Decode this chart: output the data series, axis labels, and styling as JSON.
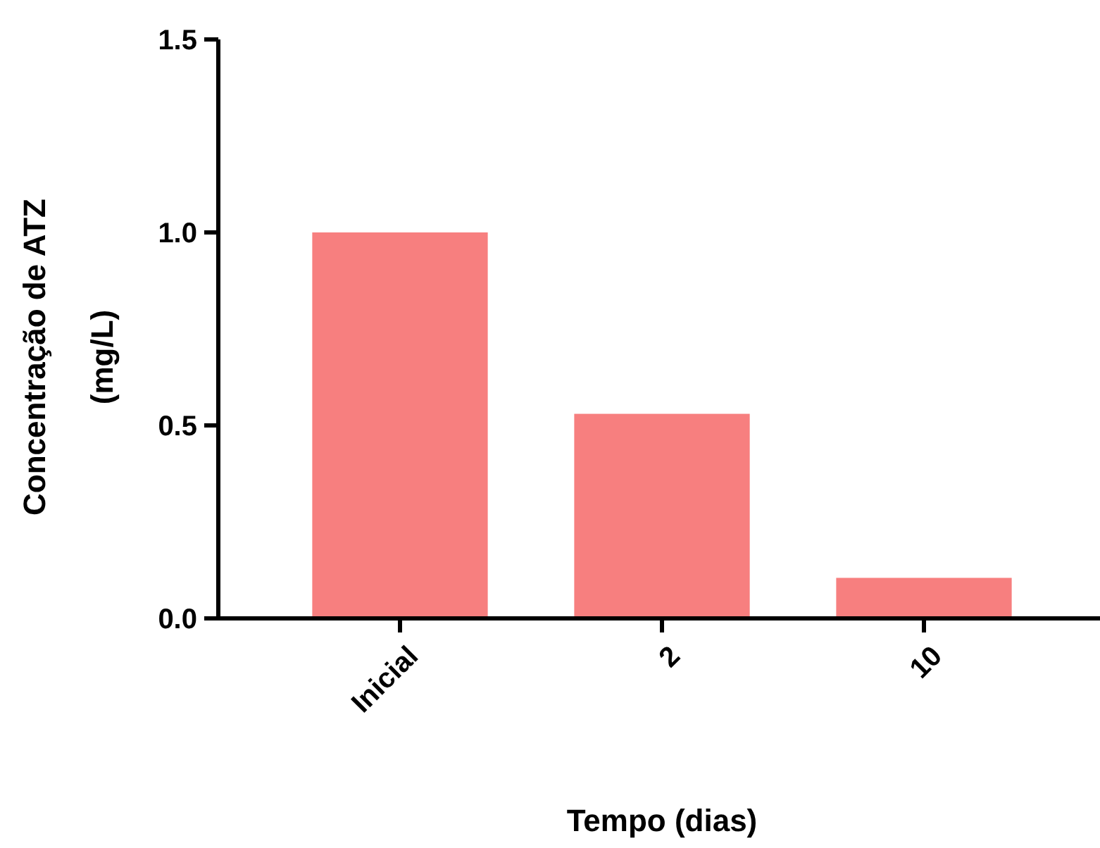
{
  "chart_data": {
    "type": "bar",
    "xlabel": "Tempo (dias)",
    "ylabel": "Concentração de ATZ\n(mg/L)",
    "categories": [
      "Inicial",
      "2",
      "10"
    ],
    "values": [
      1.0,
      0.53,
      0.105
    ],
    "color": "#f77f7f",
    "ylim": [
      0,
      1.5
    ],
    "yticks": [
      {
        "value": 0,
        "label": "0.0"
      },
      {
        "value": 0.5,
        "label": "0.5"
      },
      {
        "value": 1,
        "label": "1.0"
      },
      {
        "value": 1.5,
        "label": "1.5"
      }
    ],
    "grid": false
  }
}
